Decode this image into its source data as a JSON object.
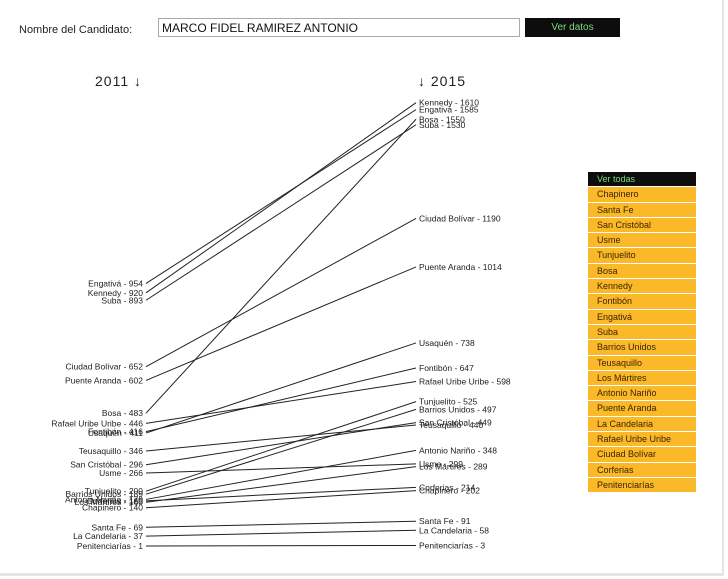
{
  "candidate": {
    "label": "Nombre del Candidato:",
    "value": "MARCO FIDEL RAMIREZ ANTONIO",
    "button": "Ver datos"
  },
  "years": {
    "left": "2011 ↓",
    "right": "↓ 2015"
  },
  "chart_data": {
    "type": "slope",
    "left_year": "2011",
    "right_year": "2015",
    "series": [
      {
        "name": "Engativá",
        "v2011": 954,
        "v2015": 1585
      },
      {
        "name": "Kennedy",
        "v2011": 920,
        "v2015": 1610
      },
      {
        "name": "Suba",
        "v2011": 893,
        "v2015": 1530
      },
      {
        "name": "Ciudad Bolívar",
        "v2011": 652,
        "v2015": 1190
      },
      {
        "name": "Puente Aranda",
        "v2011": 602,
        "v2015": 1014
      },
      {
        "name": "Bosa",
        "v2011": 483,
        "v2015": 1550
      },
      {
        "name": "Rafael Uribe Uribe",
        "v2011": 446,
        "v2015": 598
      },
      {
        "name": "Fontibón",
        "v2011": 416,
        "v2015": 647
      },
      {
        "name": "Usaquén",
        "v2011": 411,
        "v2015": 738
      },
      {
        "name": "Teusaquillo",
        "v2011": 346,
        "v2015": 440
      },
      {
        "name": "San Cristóbal",
        "v2011": 296,
        "v2015": 449
      },
      {
        "name": "Usme",
        "v2011": 266,
        "v2015": 299
      },
      {
        "name": "Tunjuelito",
        "v2011": 200,
        "v2015": 525
      },
      {
        "name": "Barrios Unidos",
        "v2011": 189,
        "v2015": 497
      },
      {
        "name": "Antonio Nariño",
        "v2011": 170,
        "v2015": 348
      },
      {
        "name": "Corferias",
        "v2011": 165,
        "v2015": 214
      },
      {
        "name": "Los Mártires",
        "v2011": 160,
        "v2015": 289
      },
      {
        "name": "Chapinero",
        "v2011": 140,
        "v2015": 202
      },
      {
        "name": "Santa Fe",
        "v2011": 69,
        "v2015": 91
      },
      {
        "name": "La Candelaria",
        "v2011": 37,
        "v2015": 58
      },
      {
        "name": "Penitenciarías",
        "v2011": 1,
        "v2015": 3
      }
    ]
  },
  "localities": {
    "items": [
      "Ver todas",
      "Chapinero",
      "Santa Fe",
      "San Cristóbal",
      "Usme",
      "Tunjuelito",
      "Bosa",
      "Kennedy",
      "Fontibón",
      "Engativá",
      "Suba",
      "Barrios Unidos",
      "Teusaquillo",
      "Los Mártires",
      "Antonio Nariño",
      "Puente Aranda",
      "La Candelaria",
      "Rafael Uribe Uribe",
      "Ciudad Bolívar",
      "Corferias",
      "Penitenciarías"
    ],
    "active_index": 0
  },
  "colors": {
    "item_bg": "#fbb829",
    "active_bg": "#0d0d0d",
    "active_fg": "#7bdc7b",
    "line": "#222222"
  }
}
